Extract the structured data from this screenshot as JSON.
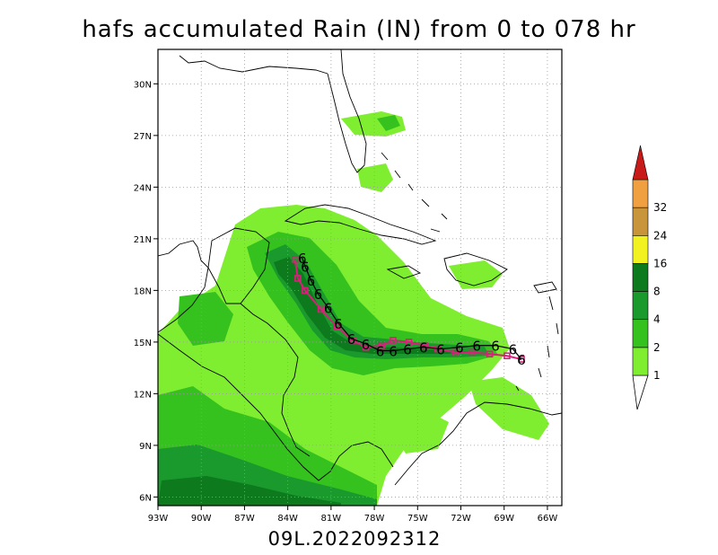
{
  "title": "hafs accumulated Rain (IN) from 0 to 078 hr",
  "subtitle": "09L.2022092312",
  "map": {
    "lon_range": [
      -93,
      -65
    ],
    "lat_range": [
      5.5,
      32
    ],
    "lon_ticks": [
      -93,
      -90,
      -87,
      -84,
      -81,
      -78,
      -75,
      -72,
      -69,
      -66
    ],
    "lon_tick_labels": [
      "93W",
      "90W",
      "87W",
      "84W",
      "81W",
      "78W",
      "75W",
      "72W",
      "69W",
      "66W"
    ],
    "lat_ticks": [
      6,
      9,
      12,
      15,
      18,
      21,
      24,
      27,
      30
    ],
    "lat_tick_labels": [
      "6N",
      "9N",
      "12N",
      "15N",
      "18N",
      "21N",
      "24N",
      "27N",
      "30N"
    ],
    "grid": "dotted"
  },
  "colorbar": {
    "levels": [
      "1",
      "2",
      "4",
      "8",
      "16",
      "24",
      "32"
    ],
    "colors": [
      "#80ee30",
      "#36c21e",
      "#1a9a2c",
      "#0d7a1e",
      "#f2f220",
      "#c9953a",
      "#f0a040",
      "#c91a1a"
    ]
  },
  "track": {
    "forecast_positions": [
      [
        -67.8,
        14.0
      ],
      [
        -68.8,
        14.2
      ],
      [
        -70.0,
        14.3
      ],
      [
        -71.2,
        14.4
      ],
      [
        -72.4,
        14.4
      ],
      [
        -73.6,
        14.6
      ],
      [
        -74.5,
        14.8
      ],
      [
        -75.6,
        15.0
      ],
      [
        -76.7,
        15.1
      ],
      [
        -77.5,
        14.8
      ],
      [
        -78.6,
        14.7
      ],
      [
        -79.5,
        15.1
      ],
      [
        -80.6,
        15.9
      ],
      [
        -81.7,
        16.9
      ],
      [
        -82.8,
        18.0
      ],
      [
        -83.3,
        18.7
      ],
      [
        -83.5,
        19.8
      ]
    ],
    "storm_symbol_positions": [
      [
        -67.8,
        14.0
      ],
      [
        -68.4,
        14.6
      ],
      [
        -69.6,
        14.8
      ],
      [
        -70.9,
        14.8
      ],
      [
        -72.1,
        14.7
      ],
      [
        -73.4,
        14.6
      ],
      [
        -74.6,
        14.7
      ],
      [
        -75.7,
        14.6
      ],
      [
        -76.7,
        14.5
      ],
      [
        -77.6,
        14.5
      ],
      [
        -78.6,
        14.9
      ],
      [
        -79.6,
        15.2
      ],
      [
        -80.5,
        16.1
      ],
      [
        -81.2,
        17.0
      ],
      [
        -81.9,
        17.8
      ],
      [
        -82.4,
        18.6
      ],
      [
        -82.8,
        19.4
      ],
      [
        -83.0,
        19.9
      ]
    ],
    "track_color": "#d8207a",
    "symbol_color": "#000000"
  }
}
